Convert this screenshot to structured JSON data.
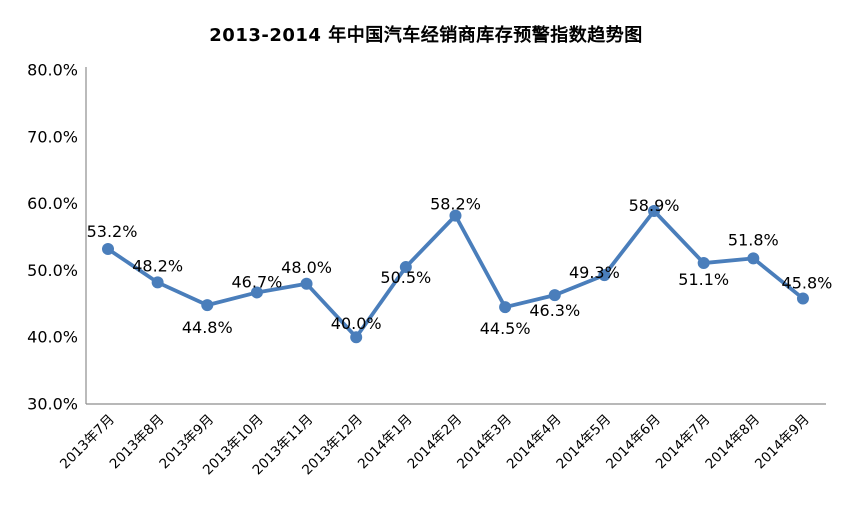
{
  "chart_data": {
    "type": "line",
    "title": "2013-2014 年中国汽车经销商库存预警指数趋势图",
    "categories": [
      "2013年7月",
      "2013年8月",
      "2013年9月",
      "2013年10月",
      "2013年11月",
      "2013年12月",
      "2014年1月",
      "2014年2月",
      "2014年3月",
      "2014年4月",
      "2014年5月",
      "2014年6月",
      "2014年7月",
      "2014年8月",
      "2014年9月"
    ],
    "values": [
      53.2,
      48.2,
      44.8,
      46.7,
      48.0,
      40.0,
      50.5,
      58.2,
      44.5,
      46.3,
      49.3,
      58.9,
      51.1,
      51.8,
      45.8
    ],
    "point_labels": [
      "53.2%",
      "48.2%",
      "44.8%",
      "46.7%",
      "48.0%",
      "40.0%",
      "50.5%",
      "58.2%",
      "44.5%",
      "46.3%",
      "49.3%",
      "58.9%",
      "51.1%",
      "51.8%",
      "45.8%"
    ],
    "y_tick_labels": [
      "30.0%",
      "40.0%",
      "50.0%",
      "60.0%",
      "70.0%",
      "80.0%"
    ],
    "y_tick_values": [
      30,
      40,
      50,
      60,
      70,
      80
    ],
    "ylim": [
      30,
      80
    ],
    "grid": false,
    "legend": "none",
    "line_color": "#4A7EBB",
    "axis_color": "#8E8E8E",
    "text_color": "#000000"
  }
}
